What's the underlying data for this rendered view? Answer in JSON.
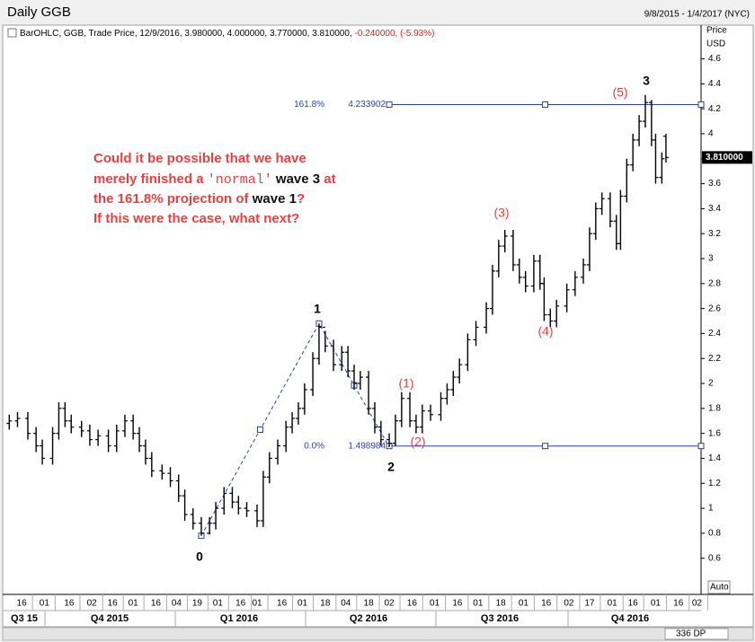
{
  "chart_data": {
    "type": "ohlc",
    "title": "Daily GGB",
    "date_range": "9/8/2015 - 1/4/2017 (NYC)",
    "info": [
      "BarOHLC, GGB, Trade Price, 12/9/2016, 3.980000, 4.000000, 3.770000, 3.810000,",
      "-0.240000, (-5.93%)"
    ],
    "y_axis_label": [
      "Price",
      "USD"
    ],
    "price_tag": "3.810000",
    "scale_mode": "Auto",
    "data_points": "336 DP",
    "color": "#000000",
    "fib_color": "#2a3fb0",
    "xlim": [
      0,
      336
    ],
    "ylim": [
      0.31,
      4.87
    ],
    "yticks": [
      0.6,
      0.8,
      1,
      1.2,
      1.4,
      1.6,
      1.8,
      2,
      2.2,
      2.4,
      2.6,
      2.8,
      3,
      3.2,
      3.4,
      3.6,
      3.8,
      4,
      4.2,
      4.4,
      4.6
    ],
    "xticks": [
      {
        "value": 7,
        "label": "16"
      },
      {
        "value": 18,
        "label": "01"
      },
      {
        "value": 30,
        "label": "16"
      },
      {
        "value": 41,
        "label": "02"
      },
      {
        "value": 51,
        "label": "16"
      },
      {
        "value": 61,
        "label": "01"
      },
      {
        "value": 72,
        "label": "16"
      },
      {
        "value": 82,
        "label": "04"
      },
      {
        "value": 92,
        "label": "19"
      },
      {
        "value": 102,
        "label": "01"
      },
      {
        "value": 113,
        "label": "16"
      },
      {
        "value": 121,
        "label": "01"
      },
      {
        "value": 133,
        "label": "16"
      },
      {
        "value": 143,
        "label": "01"
      },
      {
        "value": 154,
        "label": "18"
      },
      {
        "value": 164,
        "label": "04"
      },
      {
        "value": 175,
        "label": "18"
      },
      {
        "value": 185,
        "label": "02"
      },
      {
        "value": 196,
        "label": "16"
      },
      {
        "value": 207,
        "label": "01"
      },
      {
        "value": 218,
        "label": "16"
      },
      {
        "value": 228,
        "label": "01"
      },
      {
        "value": 239,
        "label": "18"
      },
      {
        "value": 250,
        "label": "01"
      },
      {
        "value": 261,
        "label": "16"
      },
      {
        "value": 272,
        "label": "02"
      },
      {
        "value": 282,
        "label": "17"
      },
      {
        "value": 293,
        "label": "01"
      },
      {
        "value": 303,
        "label": "16"
      },
      {
        "value": 314,
        "label": "01"
      },
      {
        "value": 325,
        "label": "16"
      },
      {
        "value": 334,
        "label": "02"
      }
    ],
    "quarters": [
      "Q3 15",
      "Q4 2015",
      "Q1 2016",
      "Q2 2016",
      "Q3 2016",
      "Q4 2016"
    ],
    "x": [
      1,
      5,
      10,
      14,
      17,
      22,
      25,
      28,
      31,
      36,
      40,
      44,
      49,
      53,
      57,
      61,
      64,
      67,
      70,
      75,
      79,
      83,
      86,
      90,
      94,
      98,
      101,
      105,
      109,
      112,
      116,
      121,
      124,
      127,
      131,
      135,
      138,
      141,
      144,
      148,
      151,
      154,
      158,
      162,
      165,
      168,
      171,
      175,
      178,
      181,
      185,
      188,
      191,
      195,
      198,
      201,
      205,
      210,
      213,
      216,
      219,
      223,
      227,
      232,
      235,
      238,
      241,
      245,
      248,
      251,
      255,
      258,
      260,
      263,
      266,
      271,
      275,
      279,
      282,
      285,
      288,
      292,
      295,
      297,
      300,
      303,
      306,
      309,
      312,
      314,
      317,
      319
    ],
    "open": [
      1.68,
      1.7,
      1.72,
      1.6,
      1.5,
      1.4,
      1.6,
      1.8,
      1.7,
      1.65,
      1.62,
      1.55,
      1.58,
      1.5,
      1.62,
      1.7,
      1.6,
      1.5,
      1.4,
      1.3,
      1.28,
      1.22,
      1.1,
      0.95,
      0.88,
      0.8,
      0.88,
      1.0,
      1.12,
      1.05,
      1.0,
      0.98,
      0.9,
      1.25,
      1.4,
      1.5,
      1.65,
      1.72,
      1.8,
      1.95,
      2.2,
      2.45,
      2.3,
      2.15,
      2.25,
      2.1,
      2.0,
      2.05,
      1.8,
      1.65,
      1.55,
      1.52,
      1.7,
      1.88,
      1.7,
      1.65,
      1.78,
      1.75,
      1.88,
      1.95,
      2.05,
      2.15,
      2.35,
      2.45,
      2.6,
      2.9,
      3.1,
      3.18,
      2.95,
      2.85,
      2.78,
      2.98,
      2.8,
      2.55,
      2.5,
      2.62,
      2.75,
      2.85,
      2.95,
      3.2,
      3.4,
      3.48,
      3.3,
      3.12,
      3.5,
      3.75,
      3.95,
      4.1,
      4.25,
      3.95,
      3.65,
      3.98
    ],
    "high": [
      1.75,
      1.77,
      1.77,
      1.65,
      1.55,
      1.65,
      1.85,
      1.85,
      1.75,
      1.7,
      1.67,
      1.63,
      1.63,
      1.67,
      1.75,
      1.75,
      1.65,
      1.55,
      1.45,
      1.35,
      1.33,
      1.27,
      1.15,
      1.0,
      0.93,
      0.93,
      1.05,
      1.17,
      1.17,
      1.1,
      1.05,
      1.03,
      1.3,
      1.45,
      1.55,
      1.7,
      1.77,
      1.85,
      2.0,
      2.25,
      2.48,
      2.42,
      2.35,
      2.3,
      2.3,
      2.15,
      2.1,
      2.1,
      1.85,
      1.7,
      1.6,
      1.75,
      1.93,
      1.93,
      1.75,
      1.83,
      1.83,
      1.93,
      2.0,
      2.1,
      2.2,
      2.4,
      2.5,
      2.65,
      2.95,
      3.15,
      3.23,
      3.23,
      3.0,
      2.9,
      3.03,
      3.03,
      2.85,
      2.6,
      2.67,
      2.8,
      2.9,
      3.0,
      3.25,
      3.45,
      3.53,
      3.53,
      3.35,
      3.55,
      3.8,
      4.0,
      4.15,
      4.31,
      4.27,
      4.0,
      3.85,
      4.0
    ],
    "low": [
      1.63,
      1.65,
      1.55,
      1.45,
      1.35,
      1.35,
      1.55,
      1.65,
      1.6,
      1.57,
      1.5,
      1.5,
      1.45,
      1.45,
      1.57,
      1.55,
      1.45,
      1.35,
      1.25,
      1.23,
      1.17,
      1.05,
      0.9,
      0.83,
      0.78,
      0.79,
      0.83,
      0.95,
      1.0,
      0.95,
      0.93,
      0.85,
      0.85,
      1.2,
      1.35,
      1.45,
      1.6,
      1.67,
      1.75,
      1.9,
      2.15,
      2.25,
      2.1,
      2.1,
      2.05,
      1.95,
      1.95,
      1.75,
      1.6,
      1.5,
      1.49,
      1.5,
      1.65,
      1.65,
      1.6,
      1.6,
      1.7,
      1.7,
      1.83,
      1.9,
      2.0,
      2.1,
      2.3,
      2.4,
      2.55,
      2.85,
      3.05,
      2.9,
      2.8,
      2.73,
      2.73,
      2.75,
      2.5,
      2.45,
      2.45,
      2.57,
      2.7,
      2.8,
      2.9,
      3.15,
      3.35,
      3.25,
      3.07,
      3.07,
      3.45,
      3.7,
      3.9,
      4.05,
      3.9,
      3.6,
      3.6,
      3.77
    ],
    "close": [
      1.7,
      1.72,
      1.6,
      1.5,
      1.4,
      1.6,
      1.8,
      1.7,
      1.65,
      1.62,
      1.55,
      1.58,
      1.5,
      1.62,
      1.7,
      1.6,
      1.5,
      1.4,
      1.3,
      1.28,
      1.22,
      1.1,
      0.95,
      0.88,
      0.8,
      0.88,
      1.0,
      1.12,
      1.05,
      1.0,
      0.98,
      0.9,
      1.25,
      1.4,
      1.5,
      1.65,
      1.72,
      1.8,
      1.95,
      2.2,
      2.45,
      2.3,
      2.15,
      2.25,
      2.1,
      2.0,
      2.05,
      1.8,
      1.65,
      1.55,
      1.52,
      1.7,
      1.88,
      1.7,
      1.65,
      1.78,
      1.75,
      1.88,
      1.95,
      2.05,
      2.15,
      2.35,
      2.45,
      2.6,
      2.9,
      3.1,
      3.18,
      2.95,
      2.85,
      2.78,
      2.98,
      2.8,
      2.55,
      2.5,
      2.62,
      2.75,
      2.85,
      2.95,
      3.2,
      3.4,
      3.48,
      3.3,
      3.12,
      3.5,
      3.75,
      3.95,
      4.1,
      4.25,
      3.95,
      3.65,
      3.8,
      3.81
    ],
    "fib_levels": [
      {
        "label": "161.8%",
        "value": 4.233902
      },
      {
        "label": "0.0%",
        "value": 1.498984
      }
    ],
    "wave_labels": [
      "0",
      "1",
      "2",
      "3",
      "(1)",
      "(2)",
      "(3)",
      "(4)",
      "(5)"
    ],
    "annotation": [
      [
        "Could it be possible that we have"
      ],
      [
        "merely finished a ",
        "'normal'",
        " wave 3",
        " at"
      ],
      [
        "the 161.8% projection of ",
        "wave 1",
        "?"
      ],
      [
        "If this were the case, what next?"
      ]
    ]
  }
}
